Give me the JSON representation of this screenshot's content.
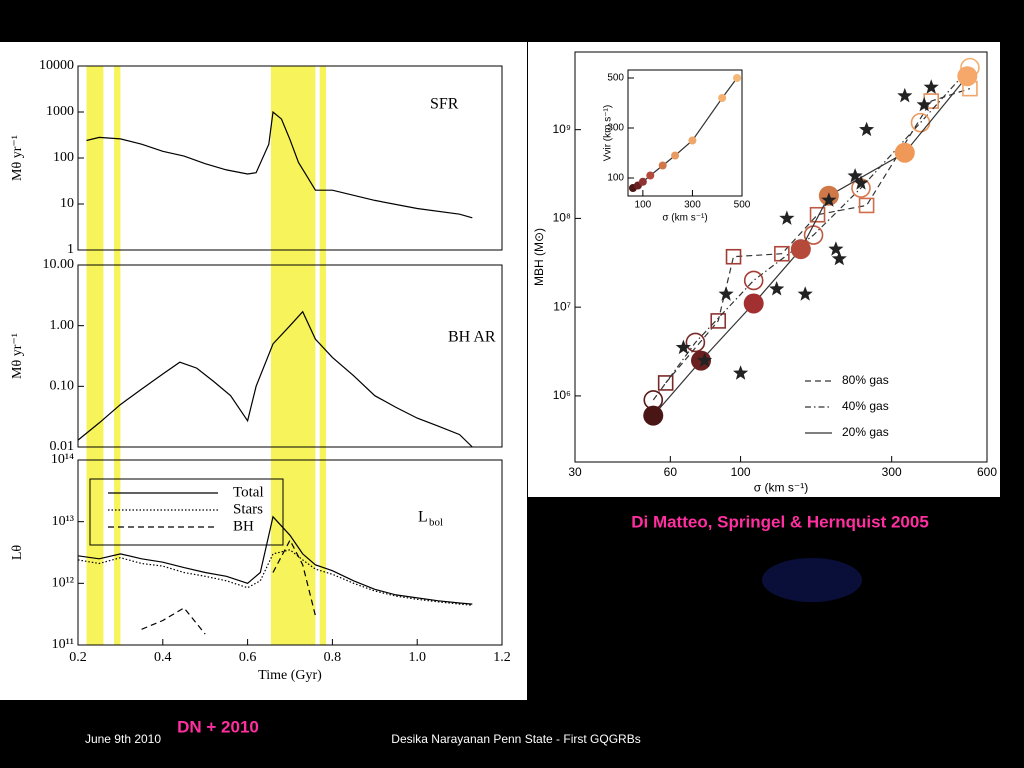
{
  "chart_data": [
    {
      "type": "line",
      "annotation": "SFR",
      "ylabel": "Mθ yr⁻¹",
      "log_y": true,
      "ylim": [
        1,
        10000
      ],
      "yticks": [
        1,
        10,
        100,
        1000,
        10000
      ],
      "bands": [
        [
          0.22,
          0.26
        ],
        [
          0.285,
          0.3
        ],
        [
          0.655,
          0.76
        ],
        [
          0.77,
          0.785
        ]
      ],
      "band_color": "#f5f032",
      "x": [
        0.22,
        0.25,
        0.3,
        0.35,
        0.4,
        0.45,
        0.5,
        0.55,
        0.6,
        0.62,
        0.65,
        0.66,
        0.68,
        0.7,
        0.72,
        0.74,
        0.76,
        0.8,
        0.9,
        1.0,
        1.1,
        1.13
      ],
      "values": [
        240,
        280,
        260,
        200,
        140,
        110,
        75,
        55,
        45,
        48,
        200,
        1000,
        700,
        250,
        80,
        40,
        20,
        20,
        12,
        8,
        6,
        5
      ],
      "color": "#000000"
    },
    {
      "type": "line",
      "annotation": "BH AR",
      "ylabel": "Mθ yr⁻¹",
      "log_y": true,
      "ylim": [
        0.01,
        10
      ],
      "yticks": [
        {
          "value": 0.01,
          "label": "0.01"
        },
        {
          "value": 0.1,
          "label": "0.10"
        },
        {
          "value": 1,
          "label": "1.00"
        },
        {
          "value": 10,
          "label": "10.00"
        }
      ],
      "x": [
        0.2,
        0.25,
        0.3,
        0.35,
        0.4,
        0.44,
        0.48,
        0.52,
        0.56,
        0.6,
        0.62,
        0.66,
        0.7,
        0.73,
        0.76,
        0.8,
        0.85,
        0.9,
        0.95,
        1.0,
        1.05,
        1.1,
        1.13
      ],
      "values": [
        0.013,
        0.025,
        0.05,
        0.09,
        0.16,
        0.25,
        0.2,
        0.12,
        0.07,
        0.027,
        0.1,
        0.5,
        1.0,
        1.7,
        0.6,
        0.3,
        0.15,
        0.07,
        0.045,
        0.03,
        0.022,
        0.016,
        0.01
      ],
      "color": "#000000"
    },
    {
      "type": "line",
      "annotation": "L",
      "annotation_sub": "bol",
      "ylabel": "Lθ",
      "xlabel": "Time (Gyr)",
      "log_y": true,
      "xlim": [
        0.2,
        1.2
      ],
      "xticks": [
        0.2,
        0.4,
        0.6,
        0.8,
        {
          "value": 1.0,
          "label": "1.0"
        },
        1.2
      ],
      "ylim": [
        100000000000.0,
        100000000000000.0
      ],
      "yticks": [
        {
          "value": 100000000000.0,
          "label": "10¹¹"
        },
        {
          "value": 1000000000000.0,
          "label": "10¹²"
        },
        {
          "value": 10000000000000.0,
          "label": "10¹³"
        },
        {
          "value": 100000000000000.0,
          "label": "10¹⁴"
        }
      ],
      "x": [
        0.2,
        0.25,
        0.3,
        0.35,
        0.4,
        0.45,
        0.5,
        0.55,
        0.6,
        0.63,
        0.66,
        0.7,
        0.73,
        0.76,
        0.8,
        0.85,
        0.9,
        0.95,
        1.0,
        1.05,
        1.1,
        1.13
      ],
      "series": [
        {
          "name": "Total",
          "style": "solid",
          "color": "#000000",
          "values": [
            2800000000000.0,
            2500000000000.0,
            3000000000000.0,
            2500000000000.0,
            2200000000000.0,
            1800000000000.0,
            1500000000000.0,
            1300000000000.0,
            1000000000000.0,
            1500000000000.0,
            12000000000000.0,
            6000000000000.0,
            3000000000000.0,
            2000000000000.0,
            1600000000000.0,
            1100000000000.0,
            800000000000.0,
            650000000000.0,
            580000000000.0,
            520000000000.0,
            480000000000.0,
            460000000000.0
          ]
        },
        {
          "name": "Stars",
          "style": "dotted",
          "color": "#000000",
          "values": [
            2400000000000.0,
            2100000000000.0,
            2600000000000.0,
            2100000000000.0,
            1900000000000.0,
            1500000000000.0,
            1300000000000.0,
            1100000000000.0,
            850000000000.0,
            1100000000000.0,
            3000000000000.0,
            3500000000000.0,
            2400000000000.0,
            1700000000000.0,
            1400000000000.0,
            1000000000000.0,
            750000000000.0,
            620000000000.0,
            550000000000.0,
            500000000000.0,
            460000000000.0,
            440000000000.0
          ]
        },
        {
          "name": "BH",
          "style": "dashed",
          "color": "#000000",
          "values": [
            null,
            null,
            null,
            180000000000.0,
            250000000000.0,
            400000000000.0,
            150000000000.0,
            null,
            null,
            null,
            1500000000000.0,
            5000000000000.0,
            2000000000000.0,
            300000000000.0,
            null,
            null,
            null,
            null,
            null,
            null,
            null,
            null
          ]
        }
      ]
    },
    {
      "type": "scatter",
      "xlabel": "σ (km s⁻¹)",
      "ylabel": "MBH (M⊙)",
      "log_x": true,
      "log_y": true,
      "xlim": [
        30,
        600
      ],
      "xticks": [
        30,
        60,
        100,
        300,
        600
      ],
      "ylim": [
        180000,
        7500000000.0
      ],
      "yticks": [
        {
          "value": 1000000.0,
          "label": "10⁶"
        },
        {
          "value": 10000000.0,
          "label": "10⁷"
        },
        {
          "value": 100000000.0,
          "label": "10⁸"
        },
        {
          "value": 1000000000.0,
          "label": "10⁹"
        }
      ],
      "series": [
        {
          "name": "80% gas",
          "style": "dashed",
          "marker": "square-open",
          "colors": [
            "#7a2a2a",
            "#8e3333",
            "#a33c35",
            "#b0483c",
            "#c05a44",
            "#d06e4c",
            "#e4905c",
            "#f0a66a"
          ],
          "x": [
            58,
            85,
            95,
            135,
            175,
            250,
            400,
            530
          ],
          "values": [
            1400000.0,
            7000000.0,
            37000000.0,
            40000000.0,
            110000000.0,
            140000000.0,
            2100000000.0,
            2900000000.0
          ]
        },
        {
          "name": "40% gas",
          "style": "dashdot",
          "marker": "circle-open",
          "colors": [
            "#5a1a1a",
            "#7a2a2a",
            "#a33c35",
            "#c05a44",
            "#d87a50",
            "#e89a60",
            "#f2b070"
          ],
          "x": [
            53,
            72,
            110,
            170,
            240,
            370,
            530
          ],
          "values": [
            900000.0,
            4000000.0,
            20000000.0,
            65000000.0,
            220000000.0,
            1200000000.0,
            5000000000.0
          ]
        },
        {
          "name": "20% gas",
          "style": "solid",
          "marker": "circle-filled",
          "colors": [
            "#4a1515",
            "#6a2020",
            "#a33030",
            "#b54a3a",
            "#d07848",
            "#f09858",
            "#f5a86a"
          ],
          "x": [
            53,
            75,
            110,
            155,
            190,
            330,
            520
          ],
          "values": [
            600000.0,
            2500000.0,
            11000000.0,
            45000000.0,
            180000000.0,
            550000000.0,
            4000000000.0
          ]
        },
        {
          "marker": "star",
          "color": "#222222",
          "x": [
            66,
            77,
            90,
            100,
            130,
            140,
            160,
            190,
            200,
            205,
            230,
            240,
            250,
            330,
            380,
            400
          ],
          "values": [
            3500000.0,
            2500000.0,
            14000000.0,
            1800000.0,
            16000000.0,
            100000000.0,
            14000000.0,
            160000000.0,
            45000000.0,
            35000000.0,
            300000000.0,
            250000000.0,
            1000000000.0,
            2400000000.0,
            1900000000.0,
            3000000000.0
          ]
        }
      ]
    },
    {
      "type": "scatter",
      "xlabel": "σ (km s⁻¹)",
      "ylabel": "Vvir (km s⁻¹)",
      "xlim": [
        40,
        500
      ],
      "xticks": [
        100,
        300,
        500
      ],
      "ylim": [
        28,
        532
      ],
      "yticks": [
        100,
        300,
        500
      ],
      "series": [
        {
          "marker": "circle-filled",
          "style": "solid",
          "colors": [
            "#4a1515",
            "#6a2020",
            "#8e3333",
            "#b54a3a",
            "#d07848",
            "#e89a60",
            "#f0a66a",
            "#f5b070",
            "#f5b878"
          ],
          "x": [
            60,
            80,
            100,
            130,
            180,
            230,
            300,
            420,
            480
          ],
          "values": [
            60,
            70,
            85,
            110,
            150,
            190,
            250,
            420,
            500
          ]
        }
      ]
    }
  ],
  "credit": "Di Matteo, Springel & Hernquist 2005",
  "credit_left": "DN + 2010",
  "footer": {
    "date": "June 9th 2010",
    "text": "Desika Narayanan   Penn State - First GQGRBs"
  }
}
